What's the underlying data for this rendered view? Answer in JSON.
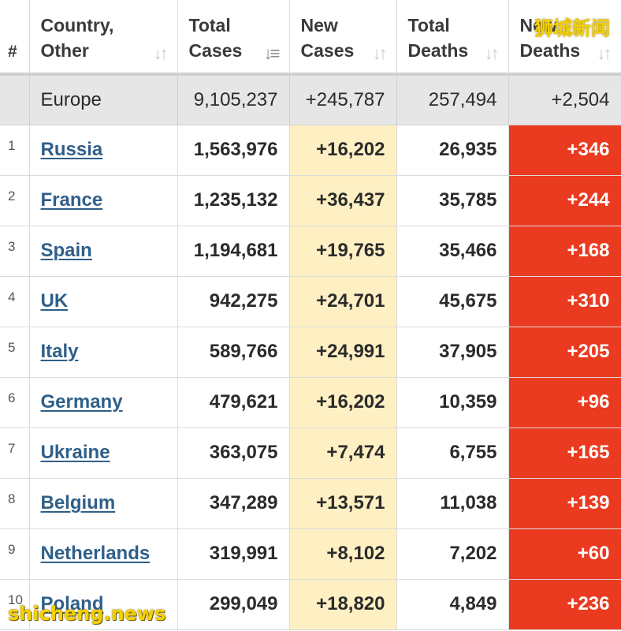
{
  "header": {
    "num": "#",
    "country_line1": "Country,",
    "country_line2": "Other",
    "total_cases_line1": "Total",
    "total_cases_line2": "Cases",
    "new_cases_line1": "New",
    "new_cases_line2": "Cases",
    "total_deaths_line1": "Total",
    "total_deaths_line2": "Deaths",
    "new_deaths_line1": "New",
    "new_deaths_line2": "Deaths",
    "sort_icon": "sort-arrows-icon"
  },
  "region_total": {
    "name": "Europe",
    "total_cases": "9,105,237",
    "new_cases": "+245,787",
    "total_deaths": "257,494",
    "new_deaths": "+2,504"
  },
  "rows": [
    {
      "rank": "1",
      "country": "Russia",
      "total_cases": "1,563,976",
      "new_cases": "+16,202",
      "total_deaths": "26,935",
      "new_deaths": "+346"
    },
    {
      "rank": "2",
      "country": "France",
      "total_cases": "1,235,132",
      "new_cases": "+36,437",
      "total_deaths": "35,785",
      "new_deaths": "+244"
    },
    {
      "rank": "3",
      "country": "Spain",
      "total_cases": "1,194,681",
      "new_cases": "+19,765",
      "total_deaths": "35,466",
      "new_deaths": "+168"
    },
    {
      "rank": "4",
      "country": "UK",
      "total_cases": "942,275",
      "new_cases": "+24,701",
      "total_deaths": "45,675",
      "new_deaths": "+310"
    },
    {
      "rank": "5",
      "country": "Italy",
      "total_cases": "589,766",
      "new_cases": "+24,991",
      "total_deaths": "37,905",
      "new_deaths": "+205"
    },
    {
      "rank": "6",
      "country": "Germany",
      "total_cases": "479,621",
      "new_cases": "+16,202",
      "total_deaths": "10,359",
      "new_deaths": "+96"
    },
    {
      "rank": "7",
      "country": "Ukraine",
      "total_cases": "363,075",
      "new_cases": "+7,474",
      "total_deaths": "6,755",
      "new_deaths": "+165"
    },
    {
      "rank": "8",
      "country": "Belgium",
      "total_cases": "347,289",
      "new_cases": "+13,571",
      "total_deaths": "11,038",
      "new_deaths": "+139"
    },
    {
      "rank": "9",
      "country": "Netherlands",
      "total_cases": "319,991",
      "new_cases": "+8,102",
      "total_deaths": "7,202",
      "new_deaths": "+60"
    },
    {
      "rank": "10",
      "country": "Poland",
      "total_cases": "299,049",
      "new_cases": "+18,820",
      "total_deaths": "4,849",
      "new_deaths": "+236"
    }
  ],
  "watermark": {
    "top_right": "狮城新闻",
    "bottom_left": "shicheng.news"
  },
  "colors": {
    "new_cases_bg": "#fff0c4",
    "new_deaths_bg": "#ea3a20",
    "link": "#2f5f8a",
    "total_row_bg": "#e6e6e6"
  }
}
